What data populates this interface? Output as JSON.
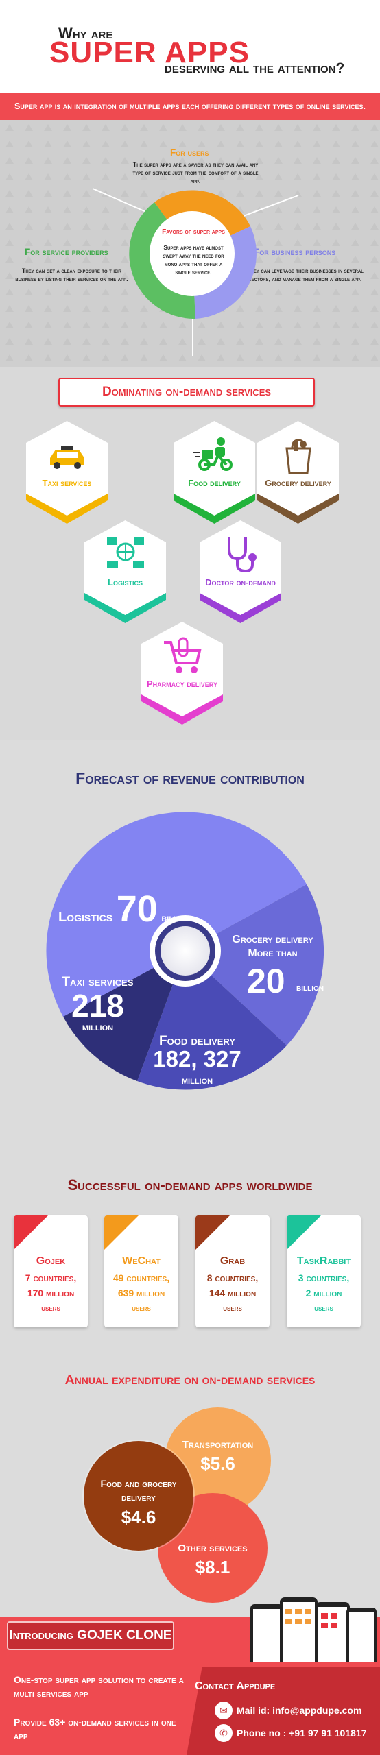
{
  "header": {
    "line1": "Why are",
    "line2": "SUPER APPS",
    "line3": "deserving all the attention?",
    "banner": "Super app is an integration of multiple apps each offering different types of online services."
  },
  "super": {
    "users_title": "For users",
    "users_text": "The super apps are a savior as they can avail any type of service just from the comfort of a single app.",
    "providers_title": "For service providers",
    "providers_text": "They can get a clean exposure to their business by listing their services on the app.",
    "business_title": "For business persons",
    "business_text": "They can leverage their businesses in several sectors, and manage them from a single app.",
    "favors_title": "Favors of super apps",
    "favors_text": "Super apps have almost swept away the need for mono apps that offer a single service.",
    "colors": {
      "orange": "#f39a1c",
      "green": "#5cbf62",
      "purple": "#9a9af0"
    }
  },
  "dominating": {
    "title": "Dominating on-demand services",
    "services": [
      {
        "label": "Taxi services",
        "color": "#f4b400",
        "icon": "taxi-icon"
      },
      {
        "label": "Food delivery",
        "color": "#21b33a",
        "icon": "delivery-scooter-icon"
      },
      {
        "label": "Grocery delivery",
        "color": "#7a5632",
        "icon": "grocery-bag-icon"
      },
      {
        "label": "Logistics",
        "color": "#1cc39a",
        "icon": "logistics-icon"
      },
      {
        "label": "Doctor on-demand",
        "color": "#9b3fd6",
        "icon": "stethoscope-icon"
      },
      {
        "label": "Pharmacy delivery",
        "color": "#e43fcf",
        "icon": "pharmacy-cart-icon"
      }
    ]
  },
  "forecast": {
    "title": "Forecast of revenue contribution",
    "logistics_label": "Logistics",
    "logistics_value": "70",
    "logistics_unit": "billion",
    "grocery_label": "Grocery delivery",
    "grocery_prefix": "More than",
    "grocery_value": "20",
    "grocery_unit": "billion",
    "taxi_label": "Taxi services",
    "taxi_value": "218",
    "taxi_unit": "million",
    "food_label": "Food delivery",
    "food_value": "182, 327",
    "food_unit": "million"
  },
  "successful": {
    "title": "Successful on-demand apps worldwide",
    "apps": [
      {
        "name": "Gojek",
        "countries": "7 countries,",
        "users": "170 million",
        "suffix": "users",
        "color": "#e8323c"
      },
      {
        "name": "WeChat",
        "countries": "49 countries,",
        "users": "639 million",
        "suffix": "users",
        "color": "#f39a1c"
      },
      {
        "name": "Grab",
        "countries": "8 countries,",
        "users": "144 million",
        "suffix": "users",
        "color": "#9b3a1a"
      },
      {
        "name": "TaskRabbit",
        "countries": "3 countries,",
        "users": "2 million",
        "suffix": "users",
        "color": "#1cc39a"
      }
    ]
  },
  "annual": {
    "title": "Annual expenditure on on-demand services",
    "transportation_label": "Transportation",
    "transportation_value": "$5.6",
    "food_label": "Food and grocery delivery",
    "food_value": "$4.6",
    "other_label": "Other services",
    "other_value": "$8.1"
  },
  "footer": {
    "intro": "Introducing GOJEK CLONE",
    "line1": "One-stop super app solution to create a multi services app",
    "line2": "Provide 63+ on-demand services in one app",
    "contact_title": "Contact Appdupe",
    "mail": "Mail id: info@appdupe.com",
    "phone": "Phone no : +91 97 91 101817"
  }
}
